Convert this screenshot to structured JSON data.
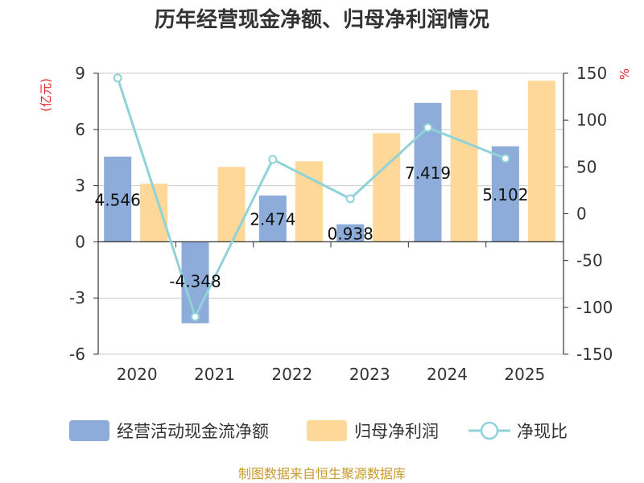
{
  "chart_data": {
    "type": "bar+line",
    "title": "历年经营现金净额、归母净利润情况",
    "categories": [
      "2020",
      "2021",
      "2022",
      "2023",
      "2024",
      "2025"
    ],
    "left_axis": {
      "unit": "(亿元)",
      "ylim": [
        -6,
        9
      ],
      "ticks": [
        9,
        6,
        3,
        0,
        -3,
        -6
      ]
    },
    "right_axis": {
      "unit": "%",
      "ylim": [
        -150,
        150
      ],
      "ticks": [
        150,
        100,
        50,
        0,
        -50,
        -100,
        -150
      ]
    },
    "series": [
      {
        "name": "经营活动现金流净额",
        "type": "bar",
        "axis": "left",
        "values": [
          4.546,
          -4.348,
          2.474,
          0.938,
          7.419,
          5.102
        ],
        "labels": [
          "4.546",
          "-4.348",
          "2.474",
          "0.938",
          "7.419",
          "5.102"
        ]
      },
      {
        "name": "归母净利润",
        "type": "bar",
        "axis": "left",
        "values": [
          3.1,
          4.0,
          4.3,
          5.8,
          8.1,
          8.6
        ]
      },
      {
        "name": "净现比",
        "type": "line",
        "axis": "right",
        "values": [
          145,
          -110,
          58,
          16,
          92,
          59
        ]
      }
    ],
    "source": "制图数据来自恒生聚源数据库"
  },
  "colors": {
    "cash": "#8eacd9",
    "profit": "#fdd898",
    "ratio": "#8fd3d8",
    "unit": "#e0262b",
    "source": "#c99a2e"
  }
}
